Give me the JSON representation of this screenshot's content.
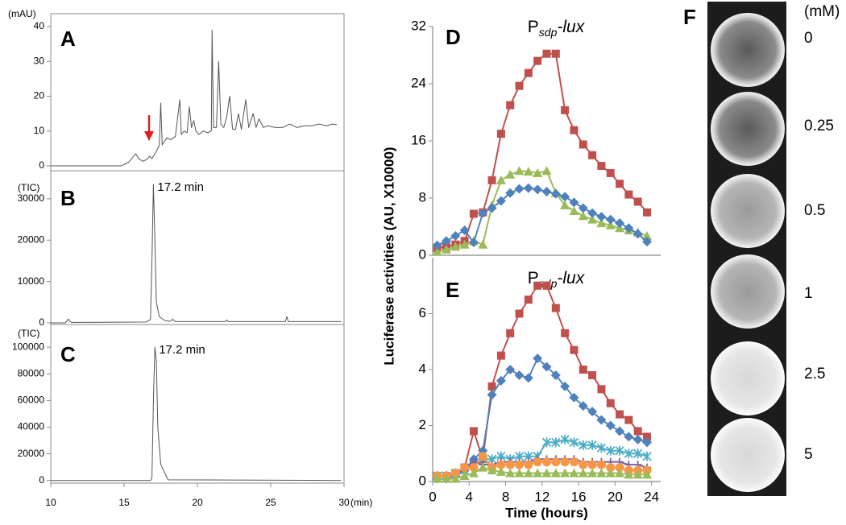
{
  "chart_data": [
    {
      "type": "line",
      "panel_label": "A",
      "ylabel": "(mAU)",
      "xlim": [
        10,
        30
      ],
      "ylim": [
        -1.4,
        43.7
      ],
      "yticks": [
        0,
        10,
        20,
        30,
        40
      ],
      "series": [
        {
          "color": "#555555",
          "x": [
            10,
            14.8,
            15.3,
            15.6,
            15.8,
            16.0,
            16.3,
            16.6,
            16.75,
            16.9,
            17.1,
            17.25,
            17.4,
            17.5,
            17.6,
            17.9,
            18.2,
            18.5,
            18.8,
            18.9,
            19.1,
            19.3,
            19.45,
            19.6,
            19.75,
            19.9,
            20.1,
            20.4,
            20.7,
            20.95,
            21.0,
            21.1,
            21.3,
            21.45,
            21.6,
            21.8,
            22.0,
            22.2,
            22.4,
            22.6,
            22.8,
            23.0,
            23.3,
            23.5,
            23.8,
            24.0,
            24.2,
            24.5,
            24.8,
            25.3,
            25.8,
            26.3,
            26.8,
            27.3,
            27.8,
            28.3,
            28.8,
            29.2,
            29.5
          ],
          "values": [
            0,
            0,
            1,
            2.5,
            3.5,
            2,
            1.3,
            2,
            2.8,
            2,
            3.5,
            4.5,
            6,
            18,
            6,
            8,
            7.5,
            8.5,
            19,
            9,
            10,
            9.5,
            17,
            11,
            13,
            10,
            9,
            10,
            9.5,
            10,
            39,
            11,
            11,
            30,
            12,
            11,
            14,
            20,
            10.5,
            10.5,
            15,
            10.5,
            19,
            11,
            15,
            11,
            13.5,
            11,
            11.5,
            11,
            11,
            12,
            11,
            11.5,
            11.5,
            12,
            11.5,
            12,
            11.8
          ]
        }
      ]
    },
    {
      "type": "line",
      "panel_label": "B",
      "ylabel": "(TIC)",
      "annotation": "17.2 min",
      "xlim": [
        10,
        30
      ],
      "ylim": [
        -400,
        36800
      ],
      "yticks": [
        0,
        10000,
        20000,
        30000
      ],
      "series": [
        {
          "color": "#555555",
          "x": [
            10,
            11.0,
            11.2,
            11.4,
            12,
            16.5,
            16.8,
            16.9,
            17.0,
            17.1,
            17.2,
            17.4,
            17.8,
            18.2,
            18.3,
            18.5,
            21.9,
            22.0,
            22.1,
            26.0,
            26.1,
            26.2,
            29.8
          ],
          "values": [
            0,
            0,
            900,
            100,
            100,
            200,
            800,
            15000,
            33500,
            20000,
            5000,
            1500,
            500,
            400,
            900,
            300,
            300,
            700,
            300,
            300,
            1500,
            300,
            300
          ]
        }
      ]
    },
    {
      "type": "line",
      "panel_label": "C",
      "ylabel": "(TIC)",
      "annotation": "17.2 min",
      "xlabel": "(min)",
      "xlim": [
        10,
        30
      ],
      "ylim": [
        -2000,
        117000
      ],
      "yticks": [
        0,
        20000,
        40000,
        60000,
        80000,
        100000
      ],
      "xticks": [
        10,
        15,
        20,
        25,
        30
      ],
      "series": [
        {
          "color": "#555555",
          "x": [
            10,
            16.8,
            16.9,
            17.0,
            17.1,
            17.2,
            17.3,
            17.5,
            18.0,
            29.8
          ],
          "values": [
            0,
            0,
            2000,
            60000,
            100000,
            90000,
            40000,
            12000,
            500,
            0
          ]
        }
      ]
    },
    {
      "type": "line",
      "panel_label": "D",
      "title": {
        "base": "P",
        "subscript": "sdp",
        "suffix": "-lux"
      },
      "ylabel": "Luciferase activities  (AU, X10000)",
      "xlim": [
        0,
        25
      ],
      "ylim": [
        0,
        32
      ],
      "yticks": [
        0,
        8,
        16,
        24,
        32
      ],
      "x": [
        0.5,
        1.5,
        2.5,
        3.5,
        4.5,
        5.5,
        6.5,
        7.5,
        8.5,
        9.5,
        10.5,
        11.5,
        12.5,
        13.5,
        14.5,
        15.5,
        16.5,
        17.5,
        18.5,
        19.5,
        20.5,
        21.5,
        22.5,
        23.5
      ],
      "series": [
        {
          "color": "#c0504d",
          "marker": "square",
          "values": [
            1,
            1.2,
            1.5,
            2,
            5.8,
            6,
            10.5,
            17,
            21,
            23.7,
            25.5,
            27.2,
            28.2,
            28.2,
            20.3,
            17.5,
            15.5,
            14,
            12.5,
            11.5,
            10,
            8.5,
            7.5,
            6
          ]
        },
        {
          "color": "#9bbb59",
          "marker": "triangle",
          "values": [
            0.5,
            0.8,
            1.2,
            1.5,
            2,
            1.5,
            7,
            10.5,
            11.3,
            11.8,
            11.7,
            11.5,
            11.8,
            8.7,
            7,
            6.2,
            5.5,
            5,
            4.5,
            4.2,
            3.8,
            3.5,
            3.2,
            2.7
          ]
        },
        {
          "color": "#4f81bd",
          "marker": "diamond",
          "values": [
            1.4,
            2,
            2.7,
            3.5,
            1.8,
            5.9,
            6.6,
            7.6,
            8.7,
            9.3,
            9.4,
            9.2,
            8.9,
            8.6,
            8.2,
            7.4,
            6.6,
            5.9,
            5.4,
            5,
            4.5,
            3.8,
            3,
            1.9
          ]
        }
      ]
    },
    {
      "type": "line",
      "panel_label": "E",
      "title": {
        "base": "P",
        "subscript": "sdp",
        "suffix": "-lux"
      },
      "xlabel": "Time (hours)",
      "xlim": [
        0,
        25
      ],
      "ylim": [
        0,
        8
      ],
      "yticks": [
        0,
        2,
        4,
        6
      ],
      "xticks": [
        0,
        4,
        8,
        12,
        16,
        20,
        24
      ],
      "x": [
        0.5,
        1.5,
        2.5,
        3.5,
        4.5,
        5.5,
        6.5,
        7.5,
        8.5,
        9.5,
        10.5,
        11.5,
        12.5,
        13.5,
        14.5,
        15.5,
        16.5,
        17.5,
        18.5,
        19.5,
        20.5,
        21.5,
        22.5,
        23.5
      ],
      "series": [
        {
          "color": "#c0504d",
          "marker": "square",
          "values": [
            0.2,
            0.2,
            0.3,
            0.5,
            1.8,
            0.8,
            3.4,
            4.5,
            5.3,
            6,
            6.5,
            7,
            7,
            6.2,
            5.3,
            4.7,
            4,
            3.8,
            3.3,
            2.8,
            2.4,
            2.2,
            1.8,
            1.6
          ]
        },
        {
          "color": "#4f81bd",
          "marker": "diamond",
          "values": [
            0.1,
            0.1,
            0.2,
            0.4,
            0.8,
            1.1,
            3.1,
            3.6,
            4,
            3.8,
            3.7,
            4.4,
            4.1,
            3.8,
            3.4,
            3,
            2.7,
            2.5,
            2.2,
            2,
            1.8,
            1.6,
            1.5,
            1.4
          ]
        },
        {
          "color": "#4bacc6",
          "marker": "x",
          "values": [
            0.2,
            0.2,
            0.3,
            0.4,
            0.6,
            0.8,
            0.8,
            0.9,
            0.8,
            0.9,
            0.9,
            0.9,
            1.4,
            1.4,
            1.5,
            1.4,
            1.3,
            1.3,
            1.2,
            1.1,
            1.1,
            1,
            1,
            0.9
          ]
        },
        {
          "color": "#8064a2",
          "marker": "plus",
          "values": [
            0.2,
            0.2,
            0.3,
            0.4,
            0.7,
            0.6,
            0.6,
            0.7,
            0.7,
            0.7,
            0.7,
            0.8,
            0.8,
            0.8,
            0.8,
            0.8,
            0.7,
            0.7,
            0.7,
            0.7,
            0.7,
            0.6,
            0.6,
            0.5
          ]
        },
        {
          "color": "#f79646",
          "marker": "circle",
          "values": [
            0.2,
            0.2,
            0.3,
            0.5,
            0.5,
            0.9,
            0.5,
            0.6,
            0.6,
            0.6,
            0.6,
            0.7,
            0.7,
            0.7,
            0.7,
            0.7,
            0.6,
            0.6,
            0.6,
            0.5,
            0.5,
            0.4,
            0.4,
            0.4
          ]
        },
        {
          "color": "#9bbb59",
          "marker": "triangle",
          "values": [
            0.1,
            0.1,
            0.1,
            0.2,
            0.3,
            0.5,
            0.4,
            0.35,
            0.3,
            0.3,
            0.3,
            0.3,
            0.3,
            0.3,
            0.3,
            0.3,
            0.3,
            0.3,
            0.3,
            0.3,
            0.3,
            0.25,
            0.25,
            0.25
          ]
        }
      ]
    }
  ],
  "panel_f": {
    "panel_label": "F",
    "unit": "(mM)",
    "labels": [
      "0",
      "0.25",
      "0.5",
      "1",
      "2.5",
      "5"
    ]
  }
}
